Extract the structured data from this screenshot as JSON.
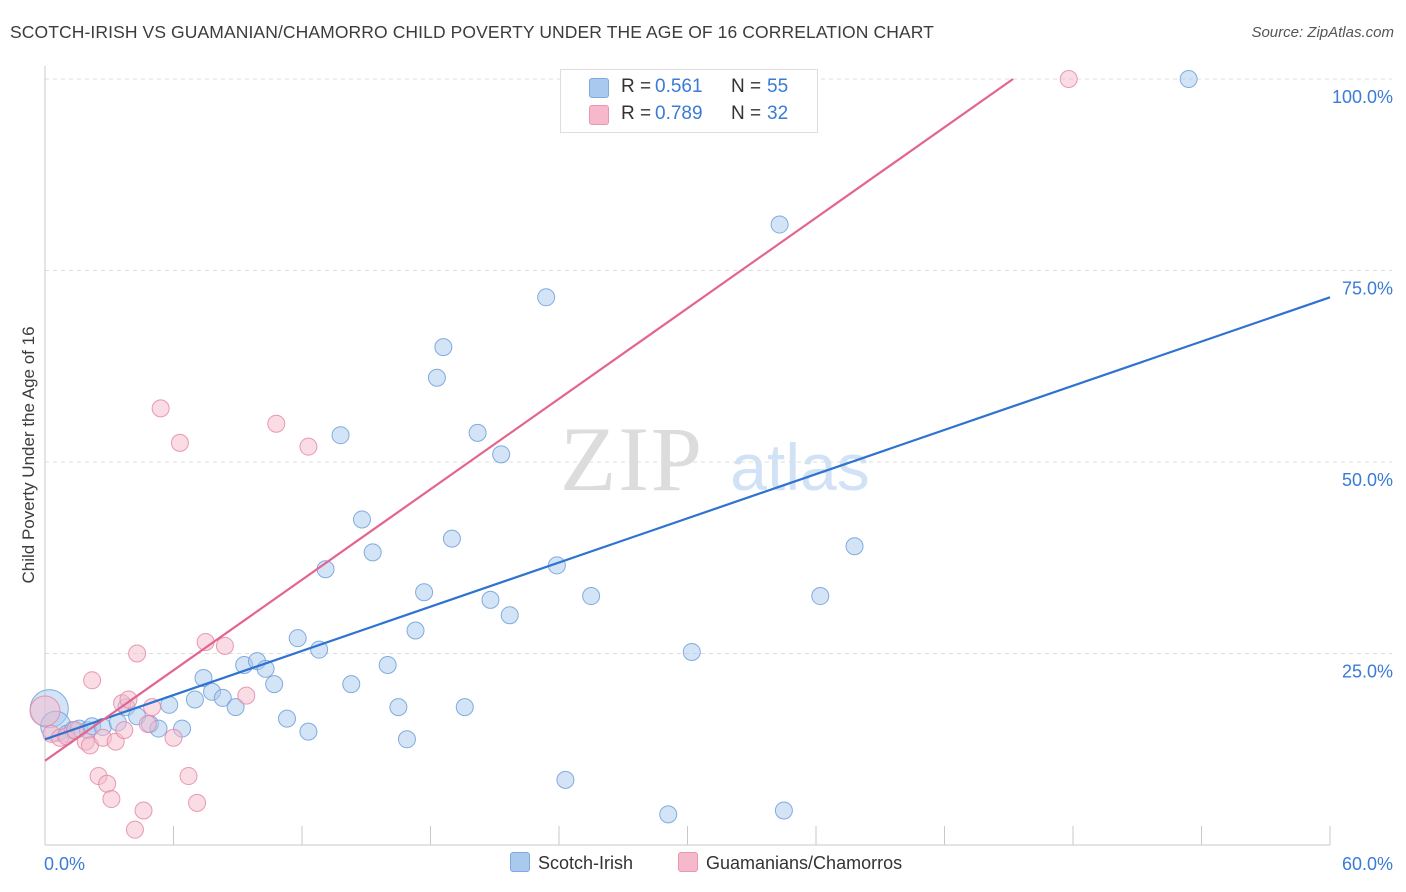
{
  "header": {
    "title": "SCOTCH-IRISH VS GUAMANIAN/CHAMORRO CHILD POVERTY UNDER THE AGE OF 16 CORRELATION CHART",
    "source": "Source: ZipAtlas.com"
  },
  "legend": {
    "r_label": "R =",
    "n_label": "N =",
    "rows": [
      {
        "r": "0.561",
        "n": "55",
        "color": "#a9c9ef"
      },
      {
        "r": "0.789",
        "n": "32",
        "color": "#f6b9cb"
      }
    ]
  },
  "bottom_legend": {
    "items": [
      {
        "label": "Scotch-Irish",
        "color": "#a9c9ef"
      },
      {
        "label": "Guamanians/Chamorros",
        "color": "#f6b9cb"
      }
    ]
  },
  "watermark": {
    "zip": "ZIP",
    "atlas": "atlas"
  },
  "colors": {
    "blue_fill": "#a9c9ef",
    "blue_line": "#2f73d0",
    "pink_fill": "#f6b9cb",
    "pink_line": "#e4648e",
    "tick_label": "#3a7bd5",
    "grid": "#dcdcdc"
  },
  "chart_data": {
    "type": "scatter",
    "ylabel": "Child Poverty Under the Age of 16",
    "xlim": [
      0,
      60
    ],
    "ylim": [
      0,
      100
    ],
    "x_tick_labels": [
      {
        "value": 0,
        "label": "0.0%"
      },
      {
        "value": 60,
        "label": "60.0%"
      }
    ],
    "y_tick_labels": [
      {
        "value": 25,
        "label": "25.0%"
      },
      {
        "value": 50,
        "label": "50.0%"
      },
      {
        "value": 75,
        "label": "75.0%"
      },
      {
        "value": 100,
        "label": "100.0%"
      }
    ],
    "grid": true,
    "legend_position": "top-center",
    "series": [
      {
        "name": "Scotch-Irish",
        "color": "#a9c9ef",
        "r": 0.561,
        "n": 55,
        "trend": [
          [
            0,
            13.8
          ],
          [
            60,
            71.5
          ]
        ],
        "points": [
          [
            0.2,
            17.8,
            3
          ],
          [
            0.5,
            15.5,
            2
          ],
          [
            1.0,
            14.5,
            1
          ],
          [
            1.3,
            15.0,
            1
          ],
          [
            1.6,
            15.2,
            1
          ],
          [
            2.0,
            15.0,
            1
          ],
          [
            2.2,
            15.5,
            1
          ],
          [
            2.7,
            15.4,
            1
          ],
          [
            3.4,
            16.0,
            1
          ],
          [
            3.8,
            18.0,
            1
          ],
          [
            4.3,
            16.8,
            1
          ],
          [
            4.9,
            15.8,
            1
          ],
          [
            5.3,
            15.2,
            1
          ],
          [
            5.8,
            18.3,
            1
          ],
          [
            6.4,
            15.2,
            1
          ],
          [
            7.0,
            19.0,
            1
          ],
          [
            7.4,
            21.8,
            1
          ],
          [
            7.8,
            20.0,
            1
          ],
          [
            8.3,
            19.2,
            1
          ],
          [
            8.9,
            18.0,
            1
          ],
          [
            9.3,
            23.5,
            1
          ],
          [
            9.9,
            24.0,
            1
          ],
          [
            10.3,
            23.0,
            1
          ],
          [
            10.7,
            21.0,
            1
          ],
          [
            11.3,
            16.5,
            1
          ],
          [
            11.8,
            27.0,
            1
          ],
          [
            12.3,
            14.8,
            1
          ],
          [
            12.8,
            25.5,
            1
          ],
          [
            13.1,
            36.0,
            1
          ],
          [
            13.8,
            53.5,
            1
          ],
          [
            14.3,
            21.0,
            1
          ],
          [
            14.8,
            42.5,
            1
          ],
          [
            15.3,
            38.2,
            1
          ],
          [
            16.0,
            23.5,
            1
          ],
          [
            16.5,
            18.0,
            1
          ],
          [
            16.9,
            13.8,
            1
          ],
          [
            17.3,
            28.0,
            1
          ],
          [
            17.7,
            33.0,
            1
          ],
          [
            18.3,
            61.0,
            1
          ],
          [
            18.6,
            65.0,
            1
          ],
          [
            19.0,
            40.0,
            1
          ],
          [
            19.6,
            18.0,
            1
          ],
          [
            20.2,
            53.8,
            1
          ],
          [
            20.8,
            32.0,
            1
          ],
          [
            21.3,
            51.0,
            1
          ],
          [
            21.7,
            30.0,
            1
          ],
          [
            23.4,
            71.5,
            1
          ],
          [
            23.9,
            36.5,
            1
          ],
          [
            24.3,
            8.5,
            1
          ],
          [
            25.5,
            32.5,
            1
          ],
          [
            29.1,
            4.0,
            1
          ],
          [
            30.2,
            25.2,
            1
          ],
          [
            34.3,
            81.0,
            1
          ],
          [
            34.5,
            4.5,
            1
          ],
          [
            36.2,
            32.5,
            1
          ],
          [
            37.8,
            39.0,
            1
          ],
          [
            53.4,
            100.0,
            1
          ]
        ]
      },
      {
        "name": "Guamanians/Chamorros",
        "color": "#f6b9cb",
        "r": 0.789,
        "n": 32,
        "trend": [
          [
            0,
            11.0
          ],
          [
            45.2,
            100.0
          ]
        ],
        "points": [
          [
            0.0,
            17.5,
            2
          ],
          [
            0.3,
            14.5,
            1
          ],
          [
            0.7,
            14.0,
            1
          ],
          [
            1.0,
            14.2,
            1
          ],
          [
            1.4,
            15.0,
            1
          ],
          [
            1.9,
            13.5,
            1
          ],
          [
            2.1,
            13.0,
            1
          ],
          [
            2.2,
            21.5,
            1
          ],
          [
            2.5,
            9.0,
            1
          ],
          [
            2.7,
            14.0,
            1
          ],
          [
            2.9,
            8.0,
            1
          ],
          [
            3.1,
            6.0,
            1
          ],
          [
            3.3,
            13.5,
            1
          ],
          [
            3.6,
            18.5,
            1
          ],
          [
            3.7,
            15.0,
            1
          ],
          [
            3.9,
            19.0,
            1
          ],
          [
            4.2,
            2.0,
            1
          ],
          [
            4.3,
            25.0,
            1
          ],
          [
            4.6,
            4.5,
            1
          ],
          [
            4.8,
            15.8,
            1
          ],
          [
            5.0,
            18.0,
            1
          ],
          [
            5.4,
            57.0,
            1
          ],
          [
            6.0,
            14.0,
            1
          ],
          [
            6.3,
            52.5,
            1
          ],
          [
            6.7,
            9.0,
            1
          ],
          [
            7.1,
            5.5,
            1
          ],
          [
            7.5,
            26.5,
            1
          ],
          [
            8.4,
            26.0,
            1
          ],
          [
            9.4,
            19.5,
            1
          ],
          [
            10.8,
            55.0,
            1
          ],
          [
            12.3,
            52.0,
            1
          ],
          [
            47.8,
            100.0,
            1
          ]
        ]
      }
    ]
  }
}
